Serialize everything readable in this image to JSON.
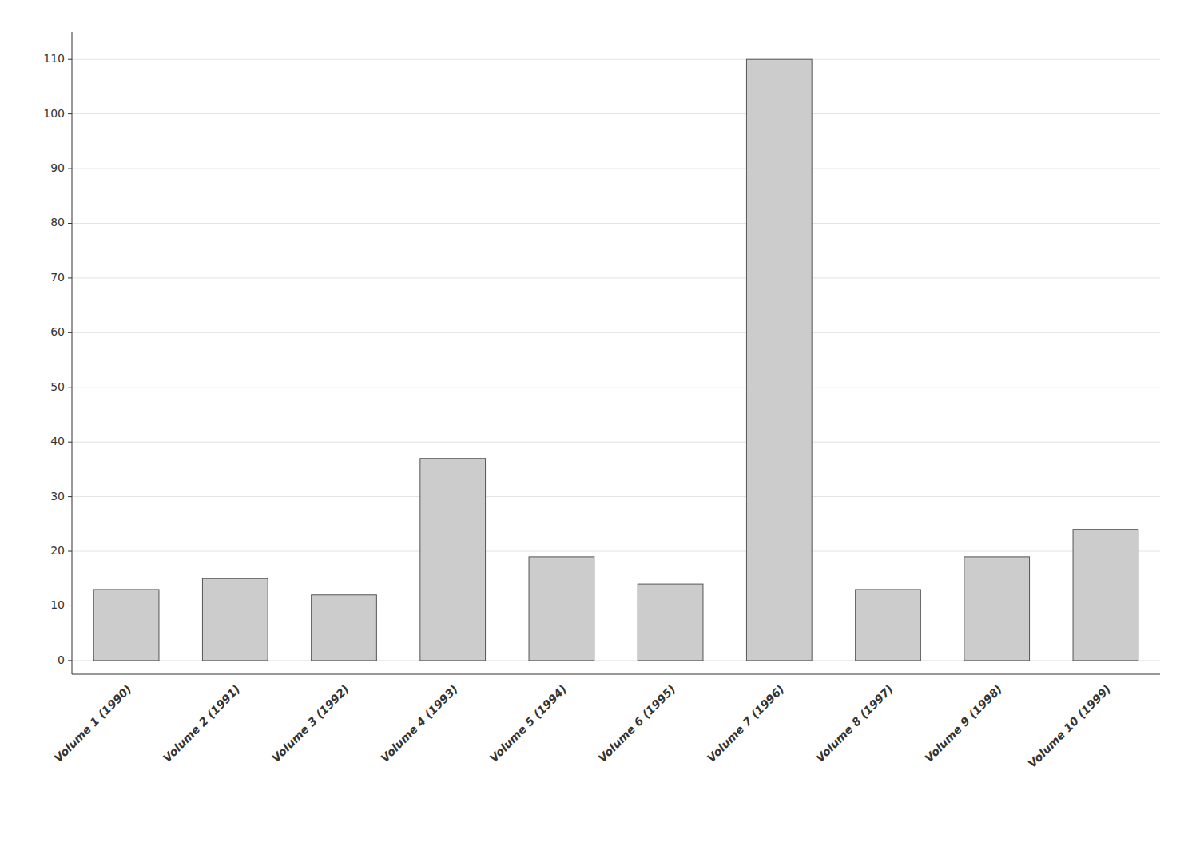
{
  "chart_data": {
    "type": "bar",
    "categories": [
      "Volume 1 (1990)",
      "Volume 2 (1991)",
      "Volume 3 (1992)",
      "Volume 4 (1993)",
      "Volume 5 (1994)",
      "Volume 6 (1995)",
      "Volume 7 (1996)",
      "Volume 8 (1997)",
      "Volume 9 (1998)",
      "Volume 10 (1999)"
    ],
    "values": [
      13,
      15,
      12,
      37,
      19,
      14,
      110,
      13,
      19,
      24
    ],
    "color": "#cccccc",
    "ylim": [
      -2.5,
      115
    ],
    "yticks": [
      0,
      10,
      20,
      30,
      40,
      50,
      60,
      70,
      80,
      90,
      100,
      110
    ],
    "grid": true
  }
}
